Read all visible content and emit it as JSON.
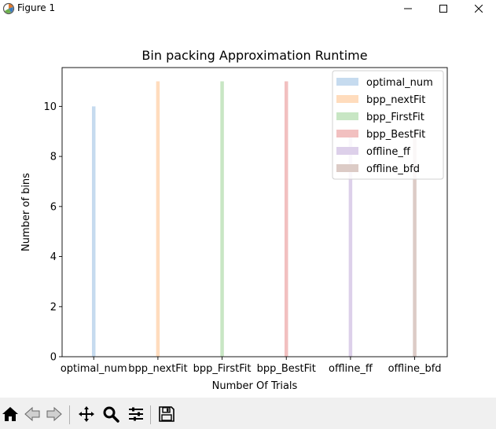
{
  "window": {
    "title": "Figure 1",
    "icons": [
      "app-icon",
      "minimize-icon",
      "maximize-icon",
      "close-icon"
    ]
  },
  "toolbar": {
    "buttons": [
      "home-icon",
      "back-icon",
      "forward-icon",
      "pan-icon",
      "zoom-icon",
      "configure-subplots-icon",
      "save-icon"
    ]
  },
  "chart_data": {
    "type": "bar",
    "title": "Bin packing Approximation Runtime",
    "xlabel": "Number Of Trials",
    "ylabel": "Number of bins",
    "categories": [
      "optimal_num",
      "bpp_nextFit",
      "bpp_FirstFit",
      "bpp_BestFit",
      "offline_ff",
      "offline_bfd"
    ],
    "series": [
      {
        "name": "optimal_num",
        "color": "#c6dbef",
        "category_index": 0,
        "value": 10
      },
      {
        "name": "bpp_nextFit",
        "color": "#ffdcbd",
        "category_index": 1,
        "value": 11
      },
      {
        "name": "bpp_FirstFit",
        "color": "#c8e6c4",
        "category_index": 2,
        "value": 11
      },
      {
        "name": "bpp_BestFit",
        "color": "#f2c0c0",
        "category_index": 3,
        "value": 11
      },
      {
        "name": "offline_ff",
        "color": "#ddd0ea",
        "category_index": 4,
        "value": 9
      },
      {
        "name": "offline_bfd",
        "color": "#dccbc6",
        "category_index": 5,
        "value": 9
      }
    ],
    "yticks": [
      "0",
      "2",
      "4",
      "6",
      "8",
      "10"
    ],
    "ylim": [
      0,
      11.55
    ],
    "grid": false,
    "legend_position": "top-right"
  }
}
